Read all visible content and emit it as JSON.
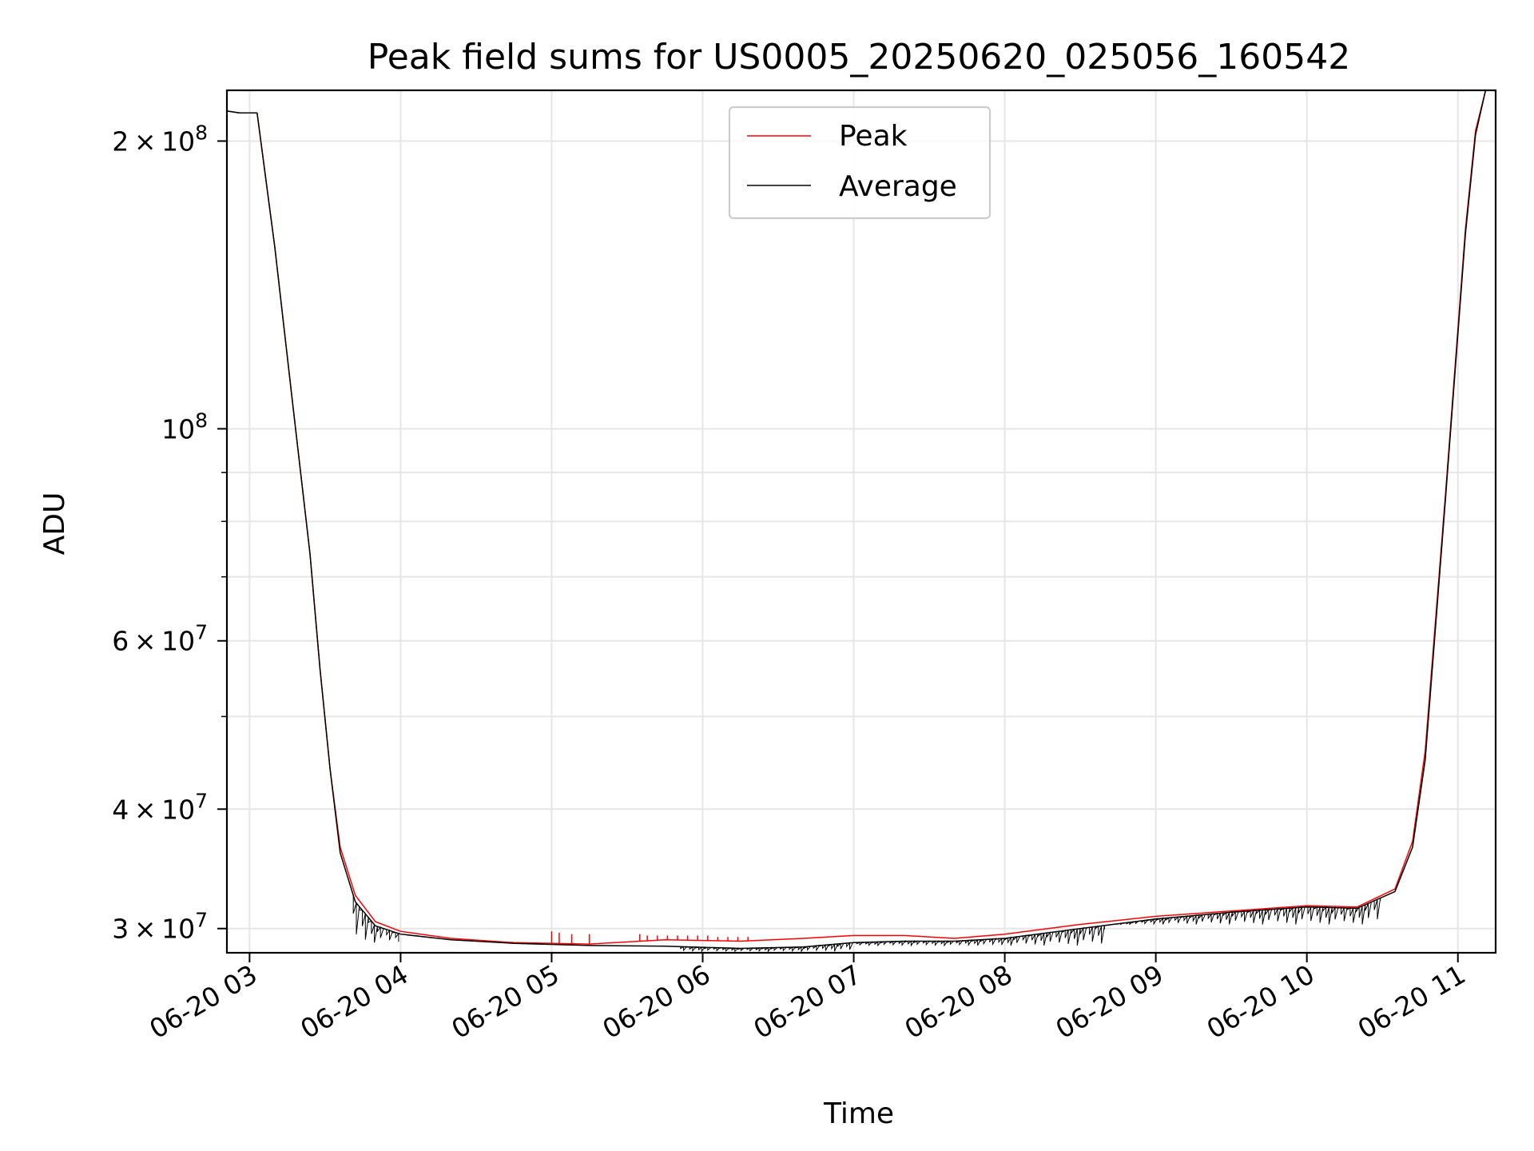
{
  "chart_data": {
    "type": "line",
    "title": "Peak field sums for US0005_20250620_025056_160542",
    "xlabel": "Time",
    "ylabel": "ADU",
    "y_scale": "log",
    "ylim": [
      28300000,
      226000000
    ],
    "x_range": [
      "06-20 02:51",
      "06-20 11:15"
    ],
    "x_ticks": [
      "06-20 03",
      "06-20 04",
      "06-20 05",
      "06-20 06",
      "06-20 07",
      "06-20 08",
      "06-20 09",
      "06-20 10",
      "06-20 11"
    ],
    "x_tick_times": [
      "06-20 03:00",
      "06-20 04:00",
      "06-20 05:00",
      "06-20 06:00",
      "06-20 07:00",
      "06-20 08:00",
      "06-20 09:00",
      "06-20 10:00",
      "06-20 11:00"
    ],
    "y_ticks": [
      {
        "value": 200000000,
        "mantissa": "2",
        "exponent": "8"
      },
      {
        "value": 100000000,
        "mantissa": "",
        "exponent": "8"
      },
      {
        "value": 60000000,
        "mantissa": "6",
        "exponent": "7"
      },
      {
        "value": 40000000,
        "mantissa": "4",
        "exponent": "7"
      },
      {
        "value": 30000000,
        "mantissa": "3",
        "exponent": "7"
      }
    ],
    "y_minor_ticks": [
      50000000,
      70000000,
      80000000,
      90000000
    ],
    "grid": true,
    "legend_position": "upper center",
    "series": [
      {
        "name": "Peak",
        "color": "#ff0000",
        "points": [
          [
            "06-20 02:51",
            215000000
          ],
          [
            "06-20 02:56",
            214000000
          ],
          [
            "06-20 03:03",
            214000000
          ],
          [
            "06-20 03:10",
            155000000
          ],
          [
            "06-20 03:17",
            107000000
          ],
          [
            "06-20 03:24",
            74000000
          ],
          [
            "06-20 03:28",
            56000000
          ],
          [
            "06-20 03:32",
            44000000
          ],
          [
            "06-20 03:36",
            36500000
          ],
          [
            "06-20 03:42",
            32500000
          ],
          [
            "06-20 03:50",
            30500000
          ],
          [
            "06-20 04:00",
            29800000
          ],
          [
            "06-20 04:20",
            29300000
          ],
          [
            "06-20 04:45",
            29000000
          ],
          [
            "06-20 05:15",
            28900000
          ],
          [
            "06-20 05:45",
            29200000
          ],
          [
            "06-20 06:15",
            29100000
          ],
          [
            "06-20 06:40",
            29300000
          ],
          [
            "06-20 07:00",
            29500000
          ],
          [
            "06-20 07:20",
            29500000
          ],
          [
            "06-20 07:40",
            29300000
          ],
          [
            "06-20 08:00",
            29600000
          ],
          [
            "06-20 08:30",
            30300000
          ],
          [
            "06-20 09:00",
            30900000
          ],
          [
            "06-20 09:30",
            31300000
          ],
          [
            "06-20 10:00",
            31700000
          ],
          [
            "06-20 10:20",
            31600000
          ],
          [
            "06-20 10:35",
            33000000
          ],
          [
            "06-20 10:42",
            37000000
          ],
          [
            "06-20 10:47",
            46000000
          ],
          [
            "06-20 10:55",
            85000000
          ],
          [
            "06-20 11:03",
            162000000
          ],
          [
            "06-20 11:07",
            205000000
          ],
          [
            "06-20 11:11",
            226000000
          ]
        ],
        "spikes": [
          {
            "x": "06-20 05:00",
            "y": 29800000
          },
          {
            "x": "06-20 05:03",
            "y": 29700000
          },
          {
            "x": "06-20 05:08",
            "y": 29600000
          },
          {
            "x": "06-20 05:15",
            "y": 29600000
          },
          {
            "x": "06-20 05:35",
            "y": 29600000
          },
          {
            "x": "06-20 05:38",
            "y": 29500000
          },
          {
            "x": "06-20 05:42",
            "y": 29500000
          },
          {
            "x": "06-20 05:46",
            "y": 29500000
          },
          {
            "x": "06-20 05:50",
            "y": 29500000
          },
          {
            "x": "06-20 05:54",
            "y": 29500000
          },
          {
            "x": "06-20 05:58",
            "y": 29500000
          },
          {
            "x": "06-20 06:02",
            "y": 29500000
          },
          {
            "x": "06-20 06:06",
            "y": 29400000
          },
          {
            "x": "06-20 06:10",
            "y": 29400000
          },
          {
            "x": "06-20 06:14",
            "y": 29400000
          },
          {
            "x": "06-20 06:18",
            "y": 29400000
          }
        ]
      },
      {
        "name": "Average",
        "color": "#000000",
        "points": [
          [
            "06-20 02:51",
            215000000
          ],
          [
            "06-20 02:56",
            214000000
          ],
          [
            "06-20 03:03",
            214000000
          ],
          [
            "06-20 03:10",
            155000000
          ],
          [
            "06-20 03:17",
            107000000
          ],
          [
            "06-20 03:24",
            74000000
          ],
          [
            "06-20 03:28",
            56000000
          ],
          [
            "06-20 03:32",
            44000000
          ],
          [
            "06-20 03:36",
            36000000
          ],
          [
            "06-20 03:42",
            32000000
          ],
          [
            "06-20 03:50",
            30200000
          ],
          [
            "06-20 04:00",
            29600000
          ],
          [
            "06-20 04:20",
            29200000
          ],
          [
            "06-20 04:45",
            28950000
          ],
          [
            "06-20 05:15",
            28800000
          ],
          [
            "06-20 05:45",
            28750000
          ],
          [
            "06-20 06:15",
            28600000
          ],
          [
            "06-20 06:40",
            28700000
          ],
          [
            "06-20 07:00",
            29000000
          ],
          [
            "06-20 07:20",
            29100000
          ],
          [
            "06-20 07:40",
            29100000
          ],
          [
            "06-20 08:00",
            29300000
          ],
          [
            "06-20 08:30",
            30000000
          ],
          [
            "06-20 09:00",
            30700000
          ],
          [
            "06-20 09:30",
            31200000
          ],
          [
            "06-20 10:00",
            31600000
          ],
          [
            "06-20 10:20",
            31500000
          ],
          [
            "06-20 10:35",
            32800000
          ],
          [
            "06-20 10:42",
            36500000
          ],
          [
            "06-20 10:47",
            45000000
          ],
          [
            "06-20 10:55",
            84000000
          ],
          [
            "06-20 11:03",
            160000000
          ],
          [
            "06-20 11:07",
            203000000
          ],
          [
            "06-20 11:11",
            226000000
          ]
        ],
        "noise_band": [
          {
            "from": "06-20 03:40",
            "to": "06-20 04:00",
            "low": 29000000
          },
          {
            "from": "06-20 05:50",
            "to": "06-20 07:00",
            "low": 28400000
          },
          {
            "from": "06-20 07:00",
            "to": "06-20 08:40",
            "low": 28800000
          },
          {
            "from": "06-20 08:40",
            "to": "06-20 10:30",
            "low": 30300000
          }
        ]
      }
    ]
  }
}
